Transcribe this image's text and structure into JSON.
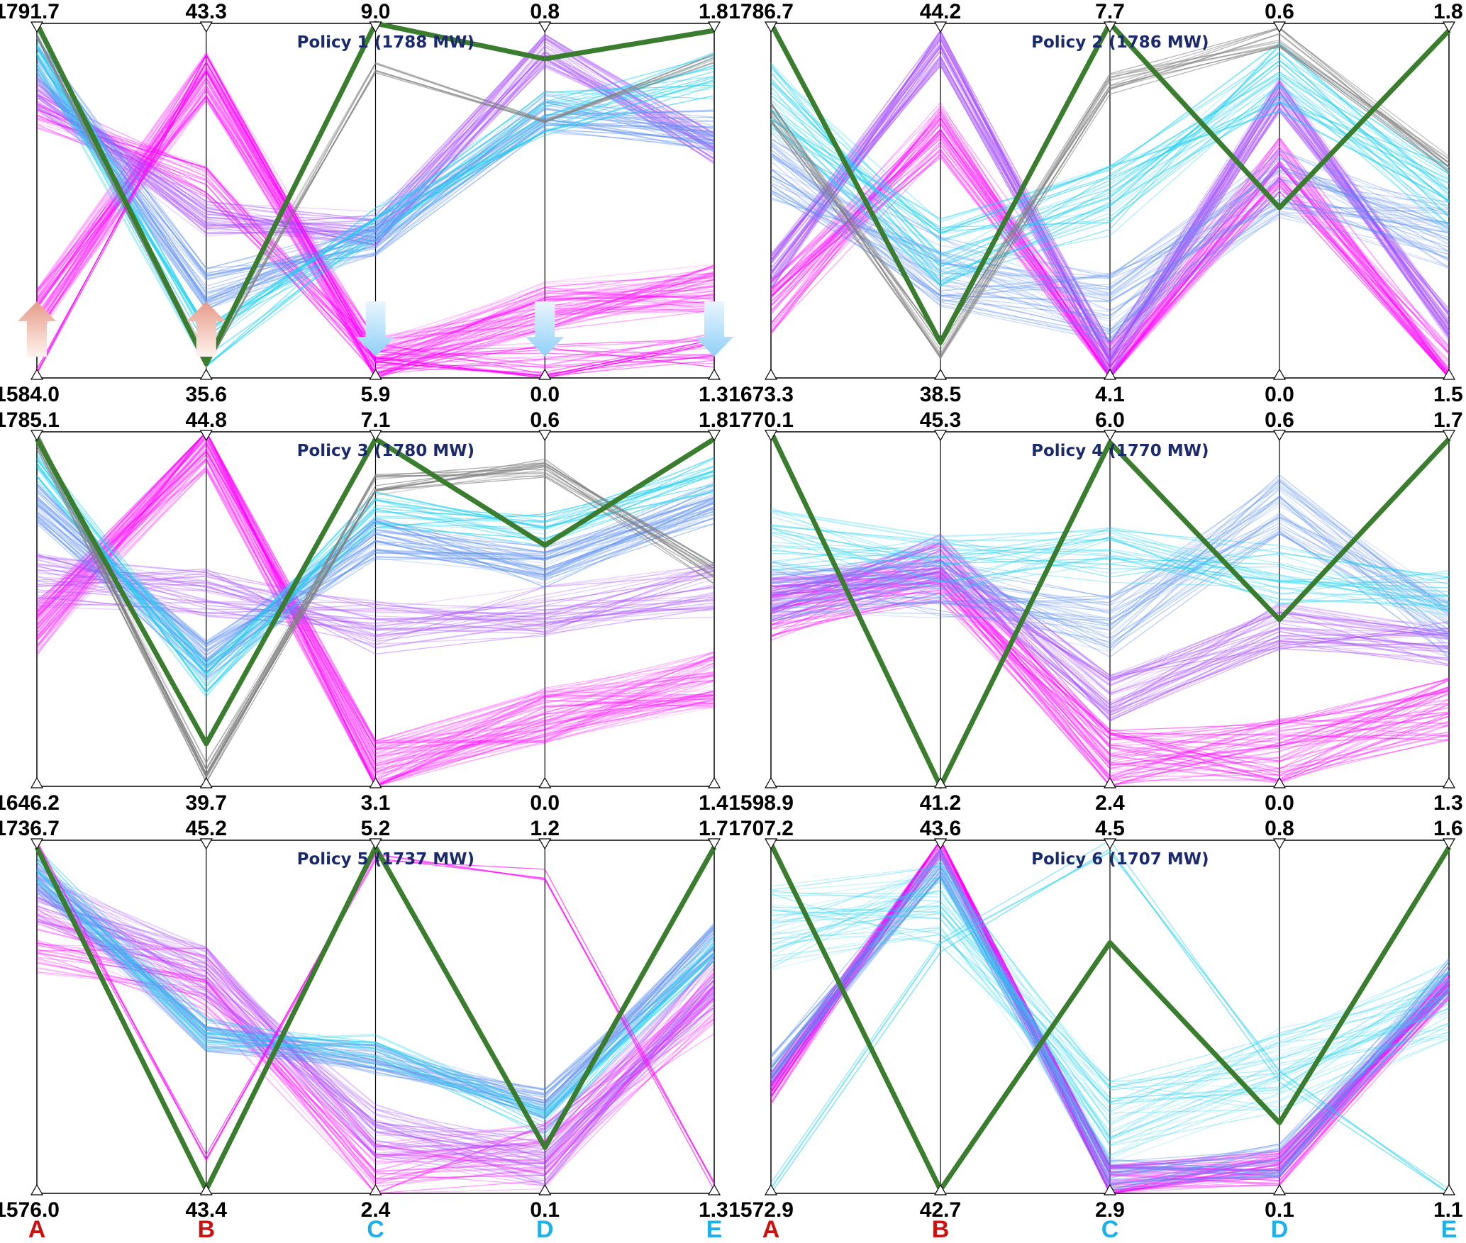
{
  "chart_data": {
    "type": "parallel-coordinates",
    "axes": [
      "A",
      "B",
      "C",
      "D",
      "E"
    ],
    "axis_colors": {
      "A": "#cc1010",
      "B": "#cc1010",
      "C": "#1fb0ea",
      "D": "#1fb0ea",
      "E": "#1fb0ea"
    },
    "highlight_color": "#3b7d2e",
    "series_palette": [
      "#ff00ff",
      "#a64dff",
      "#5a8ef0",
      "#1fd0ee",
      "#808080"
    ],
    "arrows": {
      "panel": 0,
      "up_axes": [
        "A",
        "B"
      ],
      "down_axes": [
        "C",
        "D",
        "E"
      ]
    },
    "panels": [
      {
        "title": "Policy 1  (1788 MW)",
        "max": [
          "1791.7",
          "43.3",
          "9.0",
          "0.8",
          "1.8"
        ],
        "min": [
          "1584.0",
          "35.6",
          "5.9",
          "0.0",
          "1.3"
        ],
        "highlight": [
          1.0,
          0.04,
          1.0,
          0.9,
          0.98
        ]
      },
      {
        "title": "Policy 2  (1786 MW)",
        "max": [
          "1786.7",
          "44.2",
          "7.7",
          "0.6",
          "1.8"
        ],
        "min": [
          "1673.3",
          "38.5",
          "4.1",
          "0.0",
          "1.5"
        ],
        "highlight": [
          1.0,
          0.1,
          1.0,
          0.48,
          0.98
        ]
      },
      {
        "title": "Policy 3  (1780 MW)",
        "max": [
          "1785.1",
          "44.8",
          "7.1",
          "0.6",
          "1.8"
        ],
        "min": [
          "1646.2",
          "39.7",
          "3.1",
          "0.0",
          "1.4"
        ],
        "highlight": [
          0.98,
          0.12,
          0.98,
          0.68,
          0.98
        ]
      },
      {
        "title": "Policy 4  (1770 MW)",
        "max": [
          "1770.1",
          "45.3",
          "6.0",
          "0.6",
          "1.7"
        ],
        "min": [
          "1598.9",
          "41.2",
          "2.4",
          "0.0",
          "1.3"
        ],
        "highlight": [
          1.0,
          0.0,
          0.97,
          0.47,
          0.98
        ]
      },
      {
        "title": "Policy 5  (1737 MW)",
        "max": [
          "1736.7",
          "45.2",
          "5.2",
          "1.2",
          "1.7"
        ],
        "min": [
          "1576.0",
          "43.4",
          "2.4",
          "0.1",
          "1.3"
        ],
        "highlight": [
          0.98,
          0.01,
          0.98,
          0.13,
          0.98
        ]
      },
      {
        "title": "Policy 6  (1707 MW)",
        "max": [
          "1707.2",
          "43.6",
          "4.5",
          "0.8",
          "1.6"
        ],
        "min": [
          "1572.9",
          "42.7",
          "2.9",
          "0.1",
          "1.1"
        ],
        "highlight": [
          0.99,
          0.01,
          0.71,
          0.2,
          0.98
        ]
      }
    ]
  }
}
